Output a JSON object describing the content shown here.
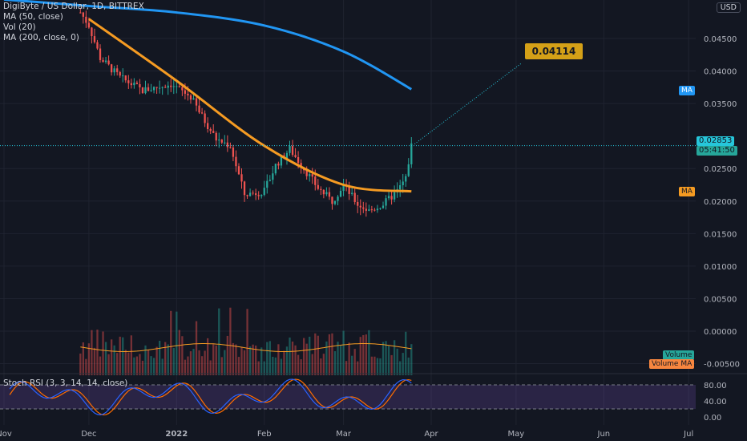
{
  "header": {
    "symbol_line": "DigiByte / US Dollar, 1D, BITTREX",
    "indicators": [
      "MA (50, close)",
      "Vol (20)",
      "MA (200, close, 0)"
    ],
    "currency_button": "USD"
  },
  "rsi_panel": {
    "title": "Stoch RSI (3, 3, 14, 14, close)",
    "ticks": [
      "80.00",
      "40.00",
      "0.00"
    ]
  },
  "price_tags": {
    "last_price": "0.02853",
    "countdown": "05:41:50",
    "ma200_label": "MA",
    "ma50_label": "MA",
    "volume_label": "Volume",
    "volume_ma_label": "Volume MA",
    "target_label": "0.04114"
  },
  "colors": {
    "background": "#131722",
    "up": "#26a69a",
    "down": "#ef5350",
    "ma50": "#f59b22",
    "ma200": "#2196f3",
    "stoch_k": "#2962ff",
    "stoch_d": "#ff6d00",
    "rsi_band": "#7e57c2"
  },
  "chart_data": {
    "type": "line",
    "price_axis_ticks": [
      "0.04500",
      "0.04000",
      "0.03500",
      "0.02500",
      "0.02000",
      "0.01500",
      "0.01000",
      "0.00500",
      "0.00000",
      "-0.00500"
    ],
    "x_ticks": [
      "Nov",
      "Dec",
      "2022",
      "Feb",
      "Mar",
      "Apr",
      "May",
      "Jun",
      "Jul"
    ],
    "series": [
      {
        "name": "MA (50, close)",
        "x": [
          "Dec",
          "2022",
          "Feb",
          "Mar",
          "Mar 25"
        ],
        "values": [
          0.048,
          0.0385,
          0.0285,
          0.0225,
          0.0215
        ]
      },
      {
        "name": "MA (200, close, 0)",
        "x": [
          "Nov",
          "Dec",
          "2022",
          "Feb",
          "Mar",
          "Mar 25"
        ],
        "values": [
          0.051,
          0.05,
          0.049,
          0.047,
          0.043,
          0.0372
        ]
      }
    ],
    "price_path": {
      "x": [
        "Nov 28",
        "Dec 1",
        "Dec 5",
        "Dec 12",
        "Dec 20",
        "Dec 30",
        "Jan 6",
        "Jan 10",
        "Jan 15",
        "Jan 20",
        "Jan 25",
        "Feb 1",
        "Feb 5",
        "Feb 10",
        "Feb 15",
        "Feb 20",
        "Feb 25",
        "Mar 1",
        "Mar 6",
        "Mar 10",
        "Mar 15",
        "Mar 20",
        "Mar 23",
        "Mar 25"
      ],
      "values": [
        0.049,
        0.047,
        0.042,
        0.039,
        0.037,
        0.038,
        0.036,
        0.033,
        0.0295,
        0.0285,
        0.021,
        0.0215,
        0.0255,
        0.028,
        0.025,
        0.022,
        0.02,
        0.0225,
        0.0195,
        0.0185,
        0.0195,
        0.0215,
        0.0235,
        0.0285
      ]
    },
    "last_price": 0.02853,
    "projection_target": 0.04114,
    "stoch_rsi_levels": [
      80,
      40,
      0
    ],
    "ylim": [
      -0.0075,
      0.05
    ],
    "grid": true,
    "legend": "top-left"
  }
}
